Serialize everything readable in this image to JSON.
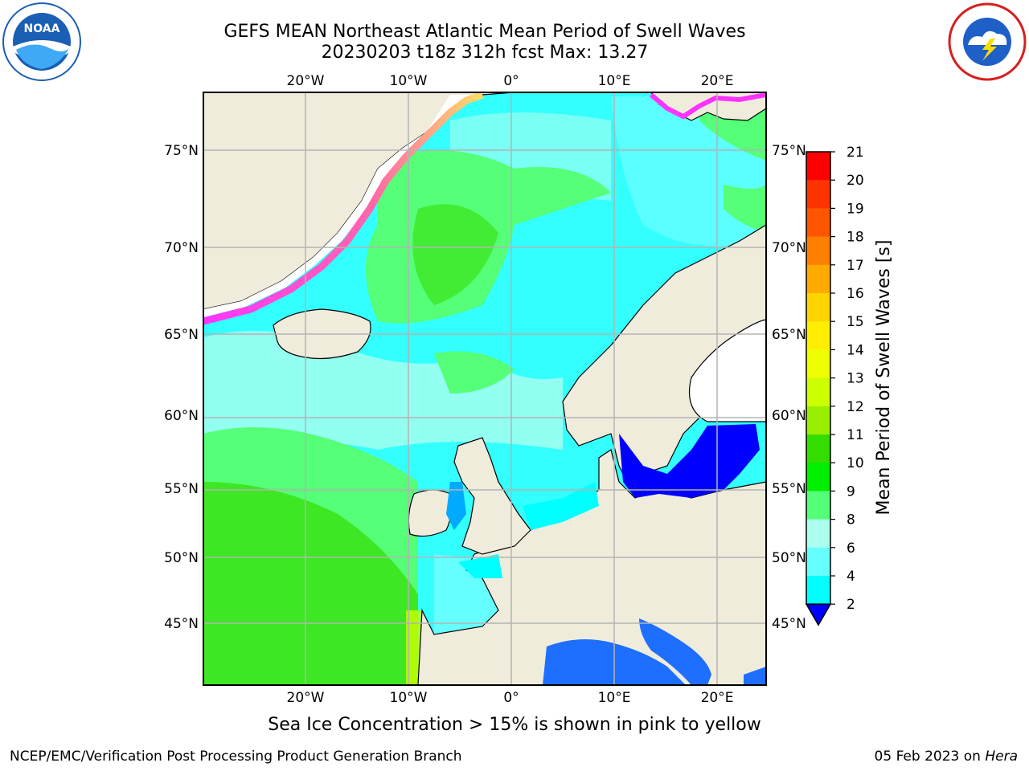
{
  "header": {
    "title_line1": "GEFS MEAN Northeast Atlantic Mean Period of Swell Waves",
    "title_line2": "20230203 t18z 312h fcst   Max: 13.27"
  },
  "logos": {
    "left": "NOAA",
    "right": "NATIONAL WEATHER SERVICE"
  },
  "map": {
    "lon_ticks_top": [
      "20°W",
      "10°W",
      "0°",
      "10°E",
      "20°E"
    ],
    "lon_ticks_bottom": [
      "20°W",
      "10°W",
      "0°",
      "10°E",
      "20°E"
    ],
    "lat_ticks_left": [
      "75°N",
      "70°N",
      "65°N",
      "60°N",
      "55°N",
      "50°N",
      "45°N"
    ],
    "lat_ticks_right": [
      "75°N",
      "70°N",
      "65°N",
      "60°N",
      "55°N",
      "50°N",
      "45°N"
    ],
    "colors": {
      "land": "#efecdc",
      "ocean_base": "#33ffff",
      "grid": "#b3b3b3"
    }
  },
  "colorbar": {
    "label": "Mean Period of Swell Waves [s]",
    "ticks": [
      "21",
      "20",
      "19",
      "18",
      "17",
      "16",
      "15",
      "14",
      "13",
      "12",
      "11",
      "10",
      "9",
      "8",
      "6",
      "4",
      "2"
    ],
    "colors": [
      "#ff0000",
      "#ff3300",
      "#ff5500",
      "#ff8000",
      "#ffaa00",
      "#ffd400",
      "#ffee00",
      "#eeff00",
      "#ccff00",
      "#99ee00",
      "#33dd00",
      "#00ee00",
      "#55ff77",
      "#aaffee",
      "#66ffff",
      "#00ffff",
      "#00aaff",
      "#0000ff"
    ]
  },
  "footer": {
    "note": "Sea Ice Concentration > 15% is shown in pink to yellow",
    "credit_left": "NCEP/EMC/Verification Post Processing Product Generation Branch",
    "credit_right_date": "05 Feb 2023 on ",
    "credit_right_host": "Hera"
  }
}
